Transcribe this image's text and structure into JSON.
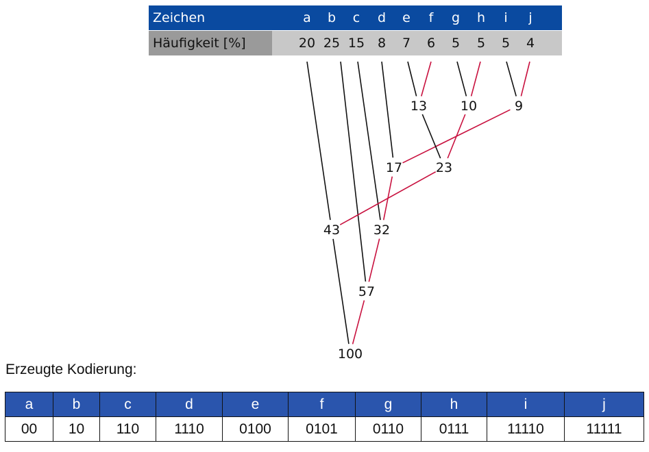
{
  "freq_table": {
    "header_label": "Zeichen",
    "freq_label": "Häufigkeit [%]",
    "symbols": [
      "a",
      "b",
      "c",
      "d",
      "e",
      "f",
      "g",
      "h",
      "i",
      "j"
    ],
    "frequencies": [
      "20",
      "25",
      "15",
      "8",
      "7",
      "6",
      "5",
      "5",
      "5",
      "4"
    ]
  },
  "tree": {
    "nodes": [
      {
        "id": "n13",
        "label": "13"
      },
      {
        "id": "n10",
        "label": "10"
      },
      {
        "id": "n9",
        "label": "9"
      },
      {
        "id": "n17",
        "label": "17"
      },
      {
        "id": "n23",
        "label": "23"
      },
      {
        "id": "n43",
        "label": "43"
      },
      {
        "id": "n32",
        "label": "32"
      },
      {
        "id": "n57",
        "label": "57"
      },
      {
        "id": "n100",
        "label": "100"
      }
    ],
    "edges": [
      {
        "from": "a",
        "to": "n43",
        "color": "black"
      },
      {
        "from": "b",
        "to": "n57",
        "color": "black"
      },
      {
        "from": "c",
        "to": "n32",
        "color": "black"
      },
      {
        "from": "d",
        "to": "n17",
        "color": "black"
      },
      {
        "from": "e",
        "to": "n13",
        "color": "black"
      },
      {
        "from": "f",
        "to": "n13",
        "color": "red"
      },
      {
        "from": "g",
        "to": "n10",
        "color": "black"
      },
      {
        "from": "h",
        "to": "n10",
        "color": "red"
      },
      {
        "from": "i",
        "to": "n9",
        "color": "black"
      },
      {
        "from": "j",
        "to": "n9",
        "color": "red"
      },
      {
        "from": "n9",
        "to": "n17",
        "color": "red"
      },
      {
        "from": "n13",
        "to": "n23",
        "color": "black"
      },
      {
        "from": "n10",
        "to": "n23",
        "color": "red"
      },
      {
        "from": "n23",
        "to": "n43",
        "color": "red"
      },
      {
        "from": "n17",
        "to": "n32",
        "color": "red"
      },
      {
        "from": "n32",
        "to": "n57",
        "color": "red"
      },
      {
        "from": "n43",
        "to": "n100",
        "color": "black"
      },
      {
        "from": "n57",
        "to": "n100",
        "color": "red"
      }
    ],
    "colors": {
      "black": "#111111",
      "red": "#c8103e"
    }
  },
  "caption": "Erzeugte Kodierung:",
  "code_table": {
    "symbols": [
      "a",
      "b",
      "c",
      "d",
      "e",
      "f",
      "g",
      "h",
      "i",
      "j"
    ],
    "codes": [
      "00",
      "10",
      "110",
      "1110",
      "0100",
      "0101",
      "0110",
      "0111",
      "11110",
      "11111"
    ]
  },
  "colors": {
    "header_blue": "#0a4aa0",
    "code_header_blue": "#2a55ad",
    "freq_gray": "#c8c8c8",
    "label_gray": "#9a9a9a"
  }
}
